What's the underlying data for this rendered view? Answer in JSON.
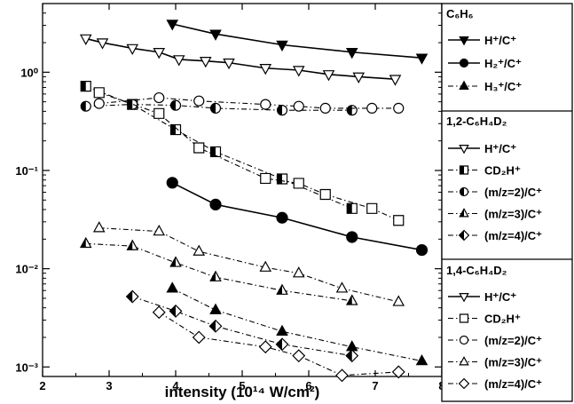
{
  "chart_data": {
    "type": "line",
    "xlabel": "intensity (10¹⁴ W/cm²)",
    "ylabel": "",
    "x_scale": "linear",
    "y_scale": "log",
    "xlim": [
      2,
      8
    ],
    "ylim": [
      0.0008,
      5
    ],
    "x_ticks": [
      "2",
      "3",
      "4",
      "5",
      "6",
      "7",
      "8"
    ],
    "y_ticks": [
      {
        "value": 1,
        "label": "10⁰"
      },
      {
        "value": 0.1,
        "label": "10⁻¹"
      },
      {
        "value": 0.01,
        "label": "10⁻²"
      },
      {
        "value": 0.001,
        "label": "10⁻³"
      }
    ],
    "legend_groups": [
      {
        "title": "C₆H₆",
        "entries": [
          "H⁺/C⁺",
          "H₂⁺/C⁺",
          "H₃⁺/C⁺"
        ]
      },
      {
        "title": "1,2-C₆H₄D₂",
        "entries": [
          "H⁺/C⁺",
          "CD₂H⁺",
          "(m/z=2)/C⁺",
          "(m/z=3)/C⁺",
          "(m/z=4)/C⁺"
        ]
      },
      {
        "title": "1,4-C₆H₄D₂",
        "entries": [
          "H⁺/C⁺",
          "CD₂H⁺",
          "(m/z=2)/C⁺",
          "(m/z=3)/C⁺",
          "(m/z=4)/C⁺"
        ]
      }
    ],
    "series": [
      {
        "name": "C₆H₆ H⁺/C⁺",
        "marker": "triangle-down",
        "fill": "full",
        "dash": "solid",
        "x": [
          3.95,
          4.6,
          5.6,
          6.65,
          7.7
        ],
        "y": [
          3.1,
          2.45,
          1.9,
          1.6,
          1.4
        ]
      },
      {
        "name": "C₆H₆ H₂⁺/C⁺",
        "marker": "circle",
        "fill": "full",
        "dash": "solid",
        "x": [
          3.95,
          4.6,
          5.6,
          6.65,
          7.7
        ],
        "y": [
          0.075,
          0.045,
          0.033,
          0.021,
          0.0155
        ]
      },
      {
        "name": "C₆H₆ H₃⁺/C⁺",
        "marker": "triangle-up",
        "fill": "full",
        "dash": "dashdot",
        "x": [
          3.95,
          4.6,
          5.6,
          6.65,
          7.7
        ],
        "y": [
          0.0063,
          0.0038,
          0.0023,
          0.0016,
          0.00115
        ]
      },
      {
        "name": "1,2-C₆H₄D₂ H⁺/C⁺",
        "marker": "triangle-down",
        "fill": "open",
        "dash": "solid",
        "x": [
          2.65,
          2.9,
          3.35,
          3.75,
          4.05,
          4.45,
          4.8,
          5.35,
          5.85,
          6.3,
          6.75,
          7.3
        ],
        "y": [
          2.2,
          2.0,
          1.75,
          1.6,
          1.35,
          1.3,
          1.25,
          1.1,
          1.05,
          0.95,
          0.9,
          0.85
        ]
      },
      {
        "name": "1,2-C₆H₄D₂ CD₂H⁺",
        "marker": "square",
        "fill": "half",
        "dash": "dashdot",
        "x": [
          2.65,
          3.35,
          4.0,
          4.6,
          5.6,
          6.65
        ],
        "y": [
          0.72,
          0.47,
          0.26,
          0.155,
          0.082,
          0.041
        ]
      },
      {
        "name": "1,2-C₆H₄D₂ (m/z=2)/C⁺",
        "marker": "circle",
        "fill": "half",
        "dash": "dashdot",
        "x": [
          2.65,
          3.35,
          4.0,
          4.6,
          5.6,
          6.65
        ],
        "y": [
          0.45,
          0.47,
          0.46,
          0.43,
          0.41,
          0.41
        ]
      },
      {
        "name": "1,2-C₆H₄D₂ (m/z=3)/C⁺",
        "marker": "triangle-up",
        "fill": "half",
        "dash": "dashdot",
        "x": [
          2.65,
          3.35,
          4.0,
          4.6,
          5.6,
          6.65
        ],
        "y": [
          0.018,
          0.017,
          0.0115,
          0.0082,
          0.006,
          0.0047
        ]
      },
      {
        "name": "1,2-C₆H₄D₂ (m/z=4)/C⁺",
        "marker": "diamond",
        "fill": "half",
        "dash": "dashdot",
        "x": [
          3.35,
          4.0,
          4.6,
          5.6,
          6.65
        ],
        "y": [
          0.0052,
          0.0037,
          0.0026,
          0.0017,
          0.0013
        ]
      },
      {
        "name": "1,4-C₆H₄D₂ CD₂H⁺",
        "marker": "square",
        "fill": "open",
        "dash": "dashdot",
        "x": [
          2.85,
          3.75,
          4.35,
          5.35,
          5.85,
          6.25,
          6.95,
          7.35
        ],
        "y": [
          0.62,
          0.38,
          0.17,
          0.083,
          0.074,
          0.057,
          0.041,
          0.031
        ]
      },
      {
        "name": "1,4-C₆H₄D₂ (m/z=2)/C⁺",
        "marker": "circle",
        "fill": "open",
        "dash": "dashdot",
        "x": [
          2.85,
          3.75,
          4.35,
          5.35,
          5.85,
          6.25,
          6.95,
          7.35
        ],
        "y": [
          0.48,
          0.55,
          0.51,
          0.47,
          0.45,
          0.43,
          0.43,
          0.43
        ]
      },
      {
        "name": "1,4-C₆H₄D₂ (m/z=3)/C⁺",
        "marker": "triangle-up",
        "fill": "open",
        "dash": "dashdot",
        "x": [
          2.85,
          3.75,
          4.35,
          5.35,
          5.85,
          6.5,
          7.35
        ],
        "y": [
          0.026,
          0.024,
          0.015,
          0.0103,
          0.009,
          0.0063,
          0.0046
        ]
      },
      {
        "name": "1,4-C₆H₄D₂ (m/z=4)/C⁺",
        "marker": "diamond",
        "fill": "open",
        "dash": "dashdot",
        "x": [
          3.75,
          4.35,
          5.35,
          5.85,
          6.5,
          7.35
        ],
        "y": [
          0.0036,
          0.002,
          0.0016,
          0.0013,
          0.00082,
          0.00089
        ]
      }
    ]
  }
}
